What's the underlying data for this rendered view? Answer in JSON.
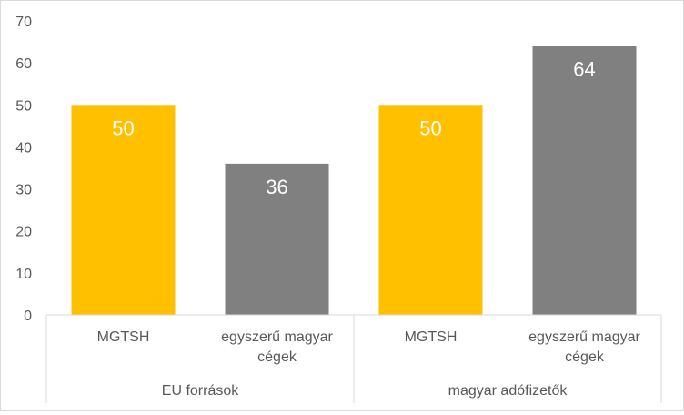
{
  "chart_data": {
    "type": "bar",
    "groups": [
      {
        "label": "EU források",
        "categories": [
          "MGTSH",
          "egyszerű magyar cégek"
        ]
      },
      {
        "label": "magyar adófizetők",
        "categories": [
          "MGTSH",
          "egyszerű magyar cégek"
        ]
      }
    ],
    "bars": [
      {
        "group": "EU források",
        "category": "MGTSH",
        "value": 50,
        "label": "50",
        "color": "#FFC000"
      },
      {
        "group": "EU források",
        "category": "egyszerű magyar cégek",
        "value": 36,
        "label": "36",
        "color": "#808080"
      },
      {
        "group": "magyar adófizetők",
        "category": "MGTSH",
        "value": 50,
        "label": "50",
        "color": "#FFC000"
      },
      {
        "group": "magyar adófizetők",
        "category": "egyszerű magyar cégek",
        "value": 64,
        "label": "64",
        "color": "#808080"
      }
    ],
    "category_label_lines": [
      [
        "MGTSH"
      ],
      [
        "egyszerű magyar",
        "cégek"
      ],
      [
        "MGTSH"
      ],
      [
        "egyszerű magyar",
        "cégek"
      ]
    ],
    "yticks": [
      "0",
      "10",
      "20",
      "30",
      "40",
      "50",
      "60",
      "70"
    ],
    "ylim": [
      0,
      70
    ],
    "grid": false,
    "legend": "none",
    "colors": {
      "mgtsh": "#FFC000",
      "cegek": "#808080",
      "axis": "#d9d9d9",
      "text": "#595959",
      "data_label": "#ffffff"
    }
  }
}
